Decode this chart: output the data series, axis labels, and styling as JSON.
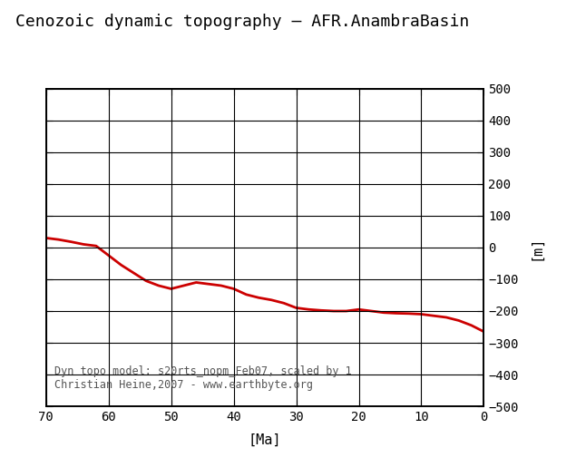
{
  "title": "Cenozoic dynamic topography – AFR.AnambraBasin",
  "xlabel": "[Ma]",
  "ylabel": "[m]",
  "annotation_line1": "Dyn topo model: s20rts_nopm_Feb07, scaled by 1",
  "annotation_line2": "Christian Heine,2007 - www.earthbyte.org",
  "x_data": [
    70,
    68,
    66,
    64,
    62,
    60,
    58,
    56,
    54,
    52,
    50,
    48,
    46,
    44,
    42,
    40,
    38,
    36,
    34,
    32,
    30,
    28,
    26,
    24,
    22,
    20,
    18,
    16,
    14,
    12,
    10,
    8,
    6,
    4,
    2,
    0
  ],
  "y_data": [
    30,
    25,
    18,
    10,
    5,
    -25,
    -55,
    -80,
    -105,
    -120,
    -130,
    -120,
    -110,
    -115,
    -120,
    -130,
    -148,
    -158,
    -165,
    -175,
    -190,
    -195,
    -198,
    -200,
    -200,
    -195,
    -200,
    -205,
    -207,
    -208,
    -210,
    -215,
    -220,
    -230,
    -245,
    -265
  ],
  "line_color": "#cc0000",
  "line_width": 2.0,
  "xlim": [
    70,
    0
  ],
  "ylim": [
    -500,
    500
  ],
  "yticks": [
    -500,
    -400,
    -300,
    -200,
    -100,
    0,
    100,
    200,
    300,
    400,
    500
  ],
  "xticks": [
    70,
    60,
    50,
    40,
    30,
    20,
    10,
    0
  ],
  "background_color": "#ffffff",
  "grid_color": "#000000",
  "title_fontsize": 13,
  "label_fontsize": 11,
  "tick_fontsize": 10,
  "annotation_fontsize": 8.5
}
